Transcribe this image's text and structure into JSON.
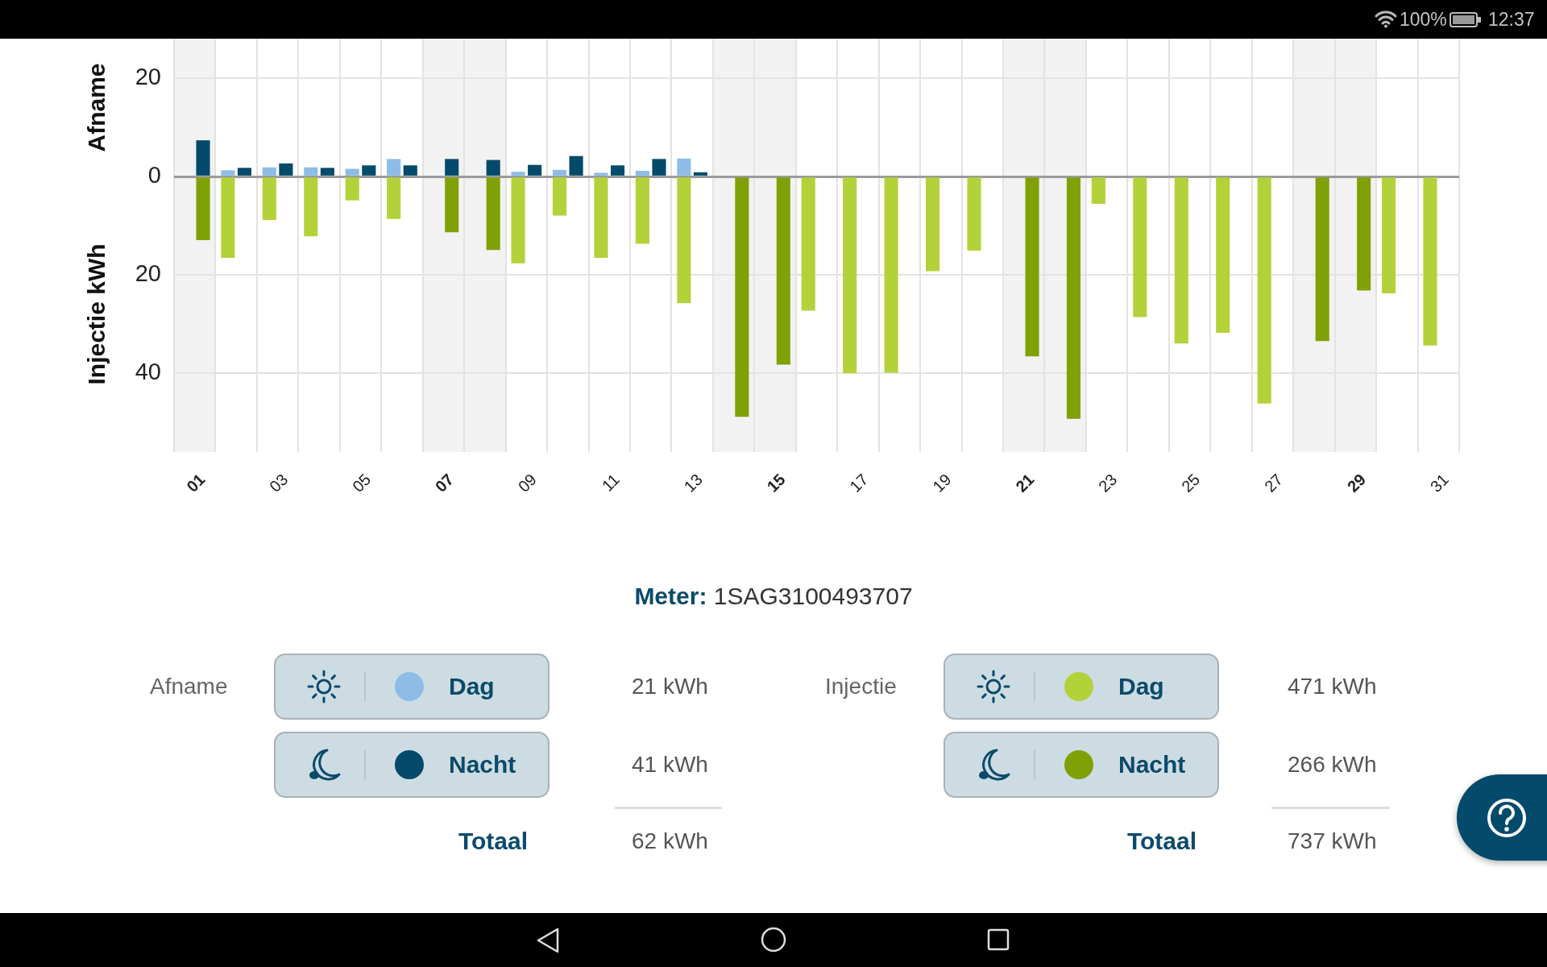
{
  "chart_data": {
    "type": "bar",
    "ylabel": "Injectie kWh",
    "x": [
      1,
      2,
      3,
      4,
      5,
      6,
      7,
      8,
      9,
      10,
      11,
      12,
      13,
      14,
      15,
      16,
      17,
      18,
      19,
      20,
      21,
      22,
      23,
      24,
      25,
      26,
      27,
      28,
      29,
      30,
      31
    ],
    "xlim": [
      0.5,
      31.5
    ],
    "xticks": [
      {
        "value": 0.5,
        "label": null
      },
      {
        "value": 1,
        "label": "01"
      },
      {
        "value": 1.5,
        "label": null
      },
      {
        "value": 2.5,
        "label": null
      },
      {
        "value": 3,
        "label": "03"
      },
      {
        "value": 3.5,
        "label": null
      },
      {
        "value": 4.5,
        "label": null
      },
      {
        "value": 5,
        "label": "05"
      },
      {
        "value": 5.5,
        "label": null
      },
      {
        "value": 6.5,
        "label": null
      },
      {
        "value": 7,
        "label": "07"
      },
      {
        "value": 7.5,
        "label": null
      },
      {
        "value": 8.5,
        "label": null
      },
      {
        "value": 9,
        "label": "09"
      },
      {
        "value": 9.5,
        "label": null
      },
      {
        "value": 10.5,
        "label": null
      },
      {
        "value": 11,
        "label": "11"
      },
      {
        "value": 11.5,
        "label": null
      },
      {
        "value": 12.5,
        "label": null
      },
      {
        "value": 13,
        "label": "13"
      },
      {
        "value": 13.5,
        "label": null
      },
      {
        "value": 14.5,
        "label": null
      },
      {
        "value": 15,
        "label": "15"
      },
      {
        "value": 15.5,
        "label": null
      },
      {
        "value": 16.5,
        "label": null
      },
      {
        "value": 17,
        "label": "17"
      },
      {
        "value": 17.5,
        "label": null
      },
      {
        "value": 18.5,
        "label": null
      },
      {
        "value": 19,
        "label": "19"
      },
      {
        "value": 19.5,
        "label": null
      },
      {
        "value": 20.5,
        "label": null
      },
      {
        "value": 21,
        "label": "21"
      },
      {
        "value": 21.5,
        "label": null
      },
      {
        "value": 22.5,
        "label": null
      },
      {
        "value": 23,
        "label": "23"
      },
      {
        "value": 23.5,
        "label": null
      },
      {
        "value": 24.5,
        "label": null
      },
      {
        "value": 25,
        "label": "25"
      },
      {
        "value": 25.5,
        "label": null
      },
      {
        "value": 26.5,
        "label": null
      },
      {
        "value": 27,
        "label": "27"
      },
      {
        "value": 27.5,
        "label": null
      },
      {
        "value": 28.5,
        "label": null
      },
      {
        "value": 29,
        "label": "29"
      },
      {
        "value": 29.5,
        "label": null
      },
      {
        "value": 30.5,
        "label": null
      },
      {
        "value": 31,
        "label": "31"
      },
      {
        "value": 31.5,
        "label": null
      }
    ],
    "ylim": [
      -56,
      28
    ],
    "yticks": [
      {
        "value": -40,
        "label": "40"
      },
      {
        "value": -20,
        "label": "20"
      },
      0,
      20
    ],
    "grid": true,
    "legend": "bottom",
    "bands": [
      {
        "axis": "x",
        "from": 0.5,
        "to": 1.5,
        "color": "#f2f2f2"
      },
      {
        "axis": "x",
        "from": 6.5,
        "to": 8.5,
        "color": "#f2f2f2"
      },
      {
        "axis": "x",
        "from": 13.5,
        "to": 15.5,
        "color": "#f2f2f2"
      },
      {
        "axis": "x",
        "from": 20.5,
        "to": 22.5,
        "color": "#f2f2f2"
      },
      {
        "axis": "x",
        "from": 27.5,
        "to": 29.5,
        "color": "#f2f2f2"
      }
    ],
    "series": [
      {
        "name": "Dag",
        "color": "#8dbde6",
        "values": [
          null,
          1.2,
          1.8,
          1.8,
          1.5,
          3.5,
          null,
          null,
          0.9,
          1.3,
          0.7,
          1.1,
          3.6,
          null,
          null,
          null,
          null,
          null,
          null,
          null,
          null,
          null,
          null,
          null,
          null,
          null,
          null,
          null,
          null,
          null,
          null
        ]
      },
      {
        "name": "Nacht",
        "color": "#034a6b",
        "values": [
          7.3,
          1.7,
          2.6,
          1.7,
          2.2,
          2.2,
          3.5,
          3.3,
          2.3,
          4.1,
          2.2,
          3.5,
          0.8,
          null,
          null,
          null,
          null,
          null,
          null,
          null,
          null,
          null,
          null,
          null,
          null,
          null,
          null,
          null,
          null,
          null,
          null
        ]
      },
      {
        "name": "Dag",
        "color": "#b3d23a",
        "values": [
          null,
          -16.5,
          -8.8,
          -12.1,
          -4.8,
          -8.6,
          null,
          null,
          -17.6,
          -7.9,
          -16.5,
          -13.6,
          -25.7,
          null,
          null,
          -27.2,
          -39.9,
          -39.8,
          -19.2,
          -15.0,
          null,
          null,
          -5.5,
          -28.5,
          -33.9,
          -31.7,
          -46.1,
          null,
          null,
          -23.7,
          -34.3
        ]
      },
      {
        "name": "Nacht",
        "color": "#80a106",
        "values": [
          -12.9,
          null,
          null,
          null,
          null,
          null,
          -11.3,
          -14.9,
          null,
          null,
          null,
          null,
          null,
          -48.8,
          -38.2,
          null,
          null,
          null,
          null,
          null,
          -36.5,
          -49.2,
          null,
          null,
          null,
          null,
          null,
          -33.4,
          -23.1,
          null,
          null
        ]
      }
    ],
    "annotations": [
      "Afname",
      "Meter: 1SAG3100493707",
      "Afname",
      "21 kWh",
      "41 kWh",
      "Totaal",
      "62 kWh",
      "Injectie",
      "471 kWh",
      "266 kWh",
      "Totaal",
      "737 kWh",
      "100%",
      "12:37"
    ]
  }
}
